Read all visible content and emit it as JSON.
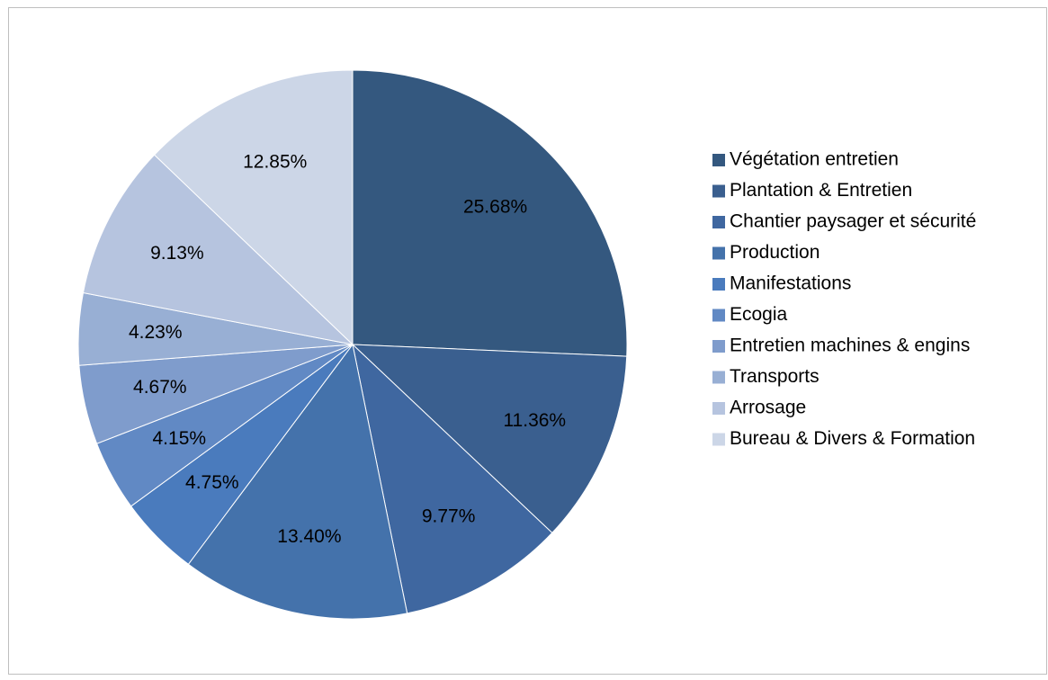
{
  "chart_data": {
    "type": "pie",
    "categories": [
      "Végétation entretien",
      "Plantation & Entretien",
      "Chantier paysager et sécurité",
      "Production",
      "Manifestations",
      "Ecogia",
      "Entretien machines & engins",
      "Transports",
      "Arrosage",
      "Bureau & Divers & Formation"
    ],
    "values": [
      25.68,
      11.36,
      9.77,
      13.4,
      4.75,
      4.15,
      4.67,
      4.23,
      9.13,
      12.85
    ],
    "value_labels": [
      "25.68%",
      "11.36%",
      "9.77%",
      "13.40%",
      "4.75%",
      "4.15%",
      "4.67%",
      "4.23%",
      "9.13%",
      "12.85%"
    ],
    "colors": [
      "#34587f",
      "#3a5f8f",
      "#3f67a0",
      "#4472ab",
      "#4a7bbd",
      "#6189c4",
      "#7f9ccc",
      "#98afd4",
      "#b6c4df",
      "#ccd6e7"
    ],
    "legend": "right"
  }
}
